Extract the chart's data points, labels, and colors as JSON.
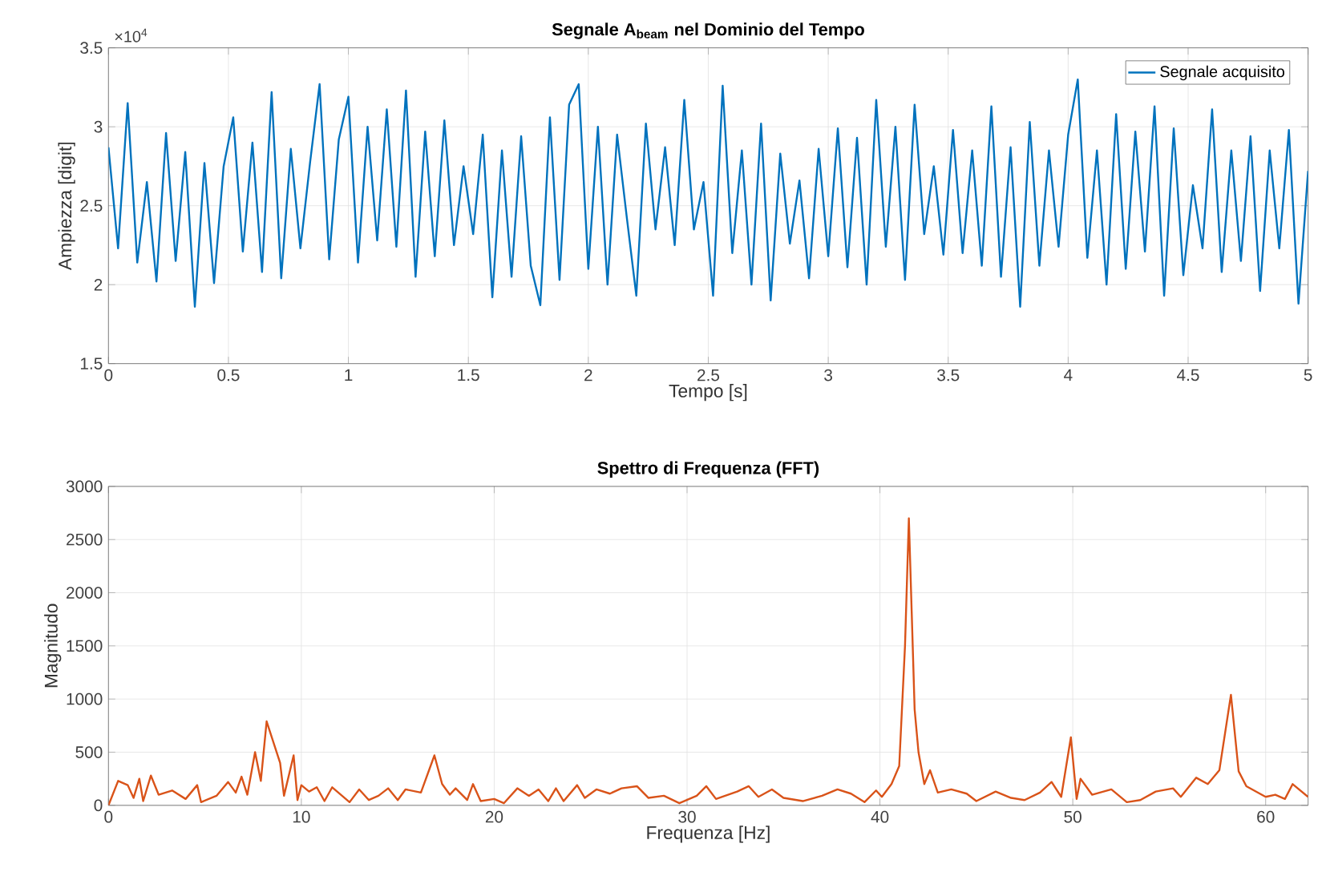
{
  "chart_data": [
    {
      "type": "line",
      "title": "Segnale A$_{beam}$ nel Dominio del Tempo",
      "xlabel": "Tempo [s]",
      "ylabel": "Ampiezza [digit]",
      "annotations": [
        "×10$^{4}$"
      ],
      "xlim": [
        0,
        5
      ],
      "ylim": [
        1.5,
        3.5
      ],
      "xticks": [
        0,
        0.5,
        1,
        1.5,
        2,
        2.5,
        3,
        3.5,
        4,
        4.5,
        5
      ],
      "yticks": [
        1.5,
        2,
        2.5,
        3,
        3.5
      ],
      "grid": true,
      "legend": "top right",
      "x": [
        0,
        0.04,
        0.08,
        0.12,
        0.16,
        0.2,
        0.24,
        0.28,
        0.32,
        0.36,
        0.4,
        0.44,
        0.48,
        0.52,
        0.56,
        0.6,
        0.64,
        0.68,
        0.72,
        0.76,
        0.8,
        0.84,
        0.88,
        0.92,
        0.96,
        1,
        1.04,
        1.08,
        1.12,
        1.16,
        1.2,
        1.24,
        1.28,
        1.32,
        1.36,
        1.4,
        1.44,
        1.48,
        1.52,
        1.56,
        1.6,
        1.64,
        1.68,
        1.72,
        1.76,
        1.8,
        1.84,
        1.88,
        1.92,
        1.96,
        2,
        2.04,
        2.08,
        2.12,
        2.16,
        2.2,
        2.24,
        2.28,
        2.32,
        2.36,
        2.4,
        2.44,
        2.48,
        2.52,
        2.56,
        2.6,
        2.64,
        2.68,
        2.72,
        2.76,
        2.8,
        2.84,
        2.88,
        2.92,
        2.96,
        3,
        3.04,
        3.08,
        3.12,
        3.16,
        3.2,
        3.24,
        3.28,
        3.32,
        3.36,
        3.4,
        3.44,
        3.48,
        3.52,
        3.56,
        3.6,
        3.64,
        3.68,
        3.72,
        3.76,
        3.8,
        3.84,
        3.88,
        3.92,
        3.96,
        4,
        4.04,
        4.08,
        4.12,
        4.16,
        4.2,
        4.24,
        4.28,
        4.32,
        4.36,
        4.4,
        4.44,
        4.48,
        4.52,
        4.56,
        4.6,
        4.64,
        4.68,
        4.72,
        4.76,
        4.8,
        4.84,
        4.88,
        4.92,
        4.96,
        5
      ],
      "series": [
        {
          "name": "Segnale acquisito",
          "color": "#0072bd",
          "values": [
            2.87,
            2.23,
            3.15,
            2.14,
            2.65,
            2.02,
            2.96,
            2.15,
            2.84,
            1.86,
            2.77,
            2.01,
            2.75,
            3.06,
            2.21,
            2.9,
            2.08,
            3.22,
            2.04,
            2.86,
            2.23,
            2.77,
            3.27,
            2.16,
            2.92,
            3.19,
            2.14,
            3,
            2.28,
            3.11,
            2.24,
            3.23,
            2.05,
            2.97,
            2.18,
            3.04,
            2.25,
            2.75,
            2.32,
            2.95,
            1.92,
            2.85,
            2.05,
            2.94,
            2.12,
            1.87,
            3.06,
            2.03,
            3.14,
            3.27,
            2.1,
            3,
            2,
            2.95,
            2.43,
            1.93,
            3.02,
            2.35,
            2.87,
            2.25,
            3.17,
            2.35,
            2.65,
            1.93,
            3.26,
            2.2,
            2.85,
            2,
            3.02,
            1.9,
            2.83,
            2.26,
            2.66,
            2.04,
            2.86,
            2.18,
            2.99,
            2.11,
            2.93,
            2,
            3.17,
            2.24,
            3,
            2.03,
            3.14,
            2.32,
            2.75,
            2.19,
            2.98,
            2.2,
            2.85,
            2.12,
            3.13,
            2.05,
            2.87,
            1.86,
            3.03,
            2.12,
            2.85,
            2.24,
            2.95,
            3.3,
            2.17,
            2.85,
            2,
            3.08,
            2.1,
            2.97,
            2.21,
            3.13,
            1.93,
            2.99,
            2.06,
            2.63,
            2.23,
            3.11,
            2.08,
            2.85,
            2.15,
            2.94,
            1.96,
            2.85,
            2.23,
            2.98,
            1.88,
            2.72
          ]
        }
      ]
    },
    {
      "type": "line",
      "title": "Spettro di Frequenza (FFT)",
      "xlabel": "Frequenza [Hz]",
      "ylabel": "Magnitudo",
      "xlim": [
        0,
        62.2
      ],
      "ylim": [
        0,
        3000
      ],
      "xticks": [
        0,
        10,
        20,
        30,
        40,
        50,
        60
      ],
      "yticks": [
        0,
        500,
        1000,
        1500,
        2000,
        2500,
        3000
      ],
      "grid": true,
      "x": [
        0,
        0.5,
        1,
        1.3,
        1.6,
        1.8,
        2.2,
        2.6,
        3.3,
        4,
        4.6,
        4.8,
        5.6,
        6.2,
        6.6,
        6.9,
        7.2,
        7.6,
        7.9,
        8.2,
        8.9,
        9.1,
        9.6,
        9.8,
        10,
        10.4,
        10.8,
        11.2,
        11.6,
        12.5,
        13,
        13.5,
        14,
        14.5,
        15,
        15.4,
        16.2,
        16.9,
        17.3,
        17.7,
        18,
        18.6,
        18.9,
        19.3,
        20,
        20.5,
        21.2,
        21.8,
        22.3,
        22.8,
        23.2,
        23.6,
        24.3,
        24.7,
        25.3,
        26,
        26.6,
        27.4,
        28,
        28.8,
        29.6,
        30.5,
        31,
        31.5,
        32.6,
        33.2,
        33.7,
        34.4,
        35,
        36,
        37,
        37.8,
        38.5,
        39.2,
        39.8,
        40.1,
        40.6,
        41,
        41.3,
        41.5,
        41.8,
        42,
        42.3,
        42.6,
        43,
        43.7,
        44.5,
        45,
        46,
        46.8,
        47.5,
        48.3,
        48.9,
        49.4,
        49.9,
        50.2,
        50.4,
        51,
        52,
        52.8,
        53.5,
        54.3,
        55.2,
        55.6,
        56.4,
        57,
        57.6,
        58.2,
        58.6,
        59,
        60,
        60.5,
        61,
        61.4,
        62.2
      ],
      "series": [
        {
          "color": "#d95319",
          "values": [
            0,
            230,
            190,
            70,
            250,
            40,
            280,
            100,
            140,
            60,
            190,
            30,
            90,
            220,
            120,
            270,
            100,
            500,
            230,
            790,
            400,
            90,
            470,
            50,
            190,
            130,
            170,
            40,
            170,
            30,
            150,
            50,
            90,
            160,
            50,
            150,
            120,
            470,
            200,
            100,
            160,
            50,
            200,
            40,
            60,
            20,
            160,
            90,
            150,
            40,
            160,
            40,
            190,
            70,
            150,
            110,
            160,
            180,
            70,
            90,
            20,
            90,
            180,
            60,
            130,
            180,
            80,
            150,
            70,
            40,
            90,
            150,
            110,
            30,
            140,
            80,
            200,
            370,
            1500,
            2700,
            900,
            500,
            200,
            330,
            120,
            150,
            110,
            40,
            130,
            70,
            50,
            120,
            220,
            80,
            640,
            60,
            250,
            100,
            150,
            30,
            50,
            130,
            160,
            80,
            260,
            200,
            330,
            1040,
            320,
            180,
            80,
            100,
            60,
            200,
            80
          ]
        }
      ]
    }
  ]
}
